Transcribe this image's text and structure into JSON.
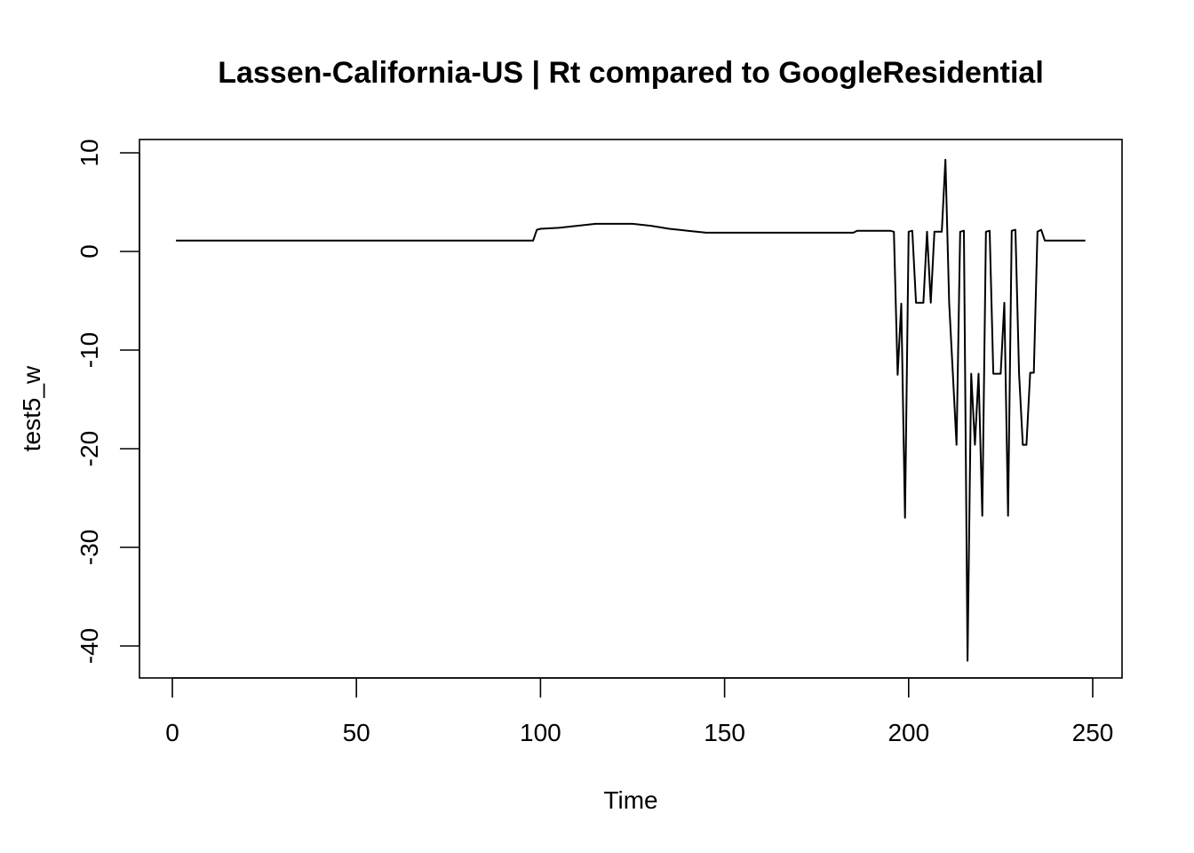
{
  "chart_data": {
    "type": "line",
    "title": "Lassen-California-US | Rt compared to GoogleResidential",
    "xlabel": "Time",
    "ylabel": "test5_w",
    "xlim": [
      1,
      248
    ],
    "ylim": [
      -41.5,
      9.5
    ],
    "x_ticks": [
      0,
      50,
      100,
      150,
      200,
      250
    ],
    "x_tick_labels": [
      "0",
      "50",
      "100",
      "150",
      "200",
      "250"
    ],
    "y_ticks": [
      -40,
      -30,
      -20,
      -10,
      0,
      10
    ],
    "y_tick_labels": [
      "-40",
      "-30",
      "-20",
      "-10",
      "0",
      "10"
    ],
    "grid": false,
    "legend": "none",
    "line_color": "#000000",
    "series": [
      {
        "x": [
          1,
          98,
          99,
          100,
          105,
          110,
          115,
          120,
          125,
          130,
          135,
          140,
          145,
          150,
          160,
          170,
          180,
          185,
          186,
          190,
          195,
          196,
          197,
          198,
          199,
          200,
          201,
          202,
          203,
          204,
          205,
          206,
          207,
          208,
          209,
          210,
          211,
          212,
          213,
          214,
          215,
          216,
          217,
          218,
          219,
          220,
          221,
          222,
          223,
          224,
          225,
          226,
          227,
          228,
          229,
          230,
          231,
          232,
          233,
          234,
          235,
          236,
          237,
          240,
          245,
          248
        ],
        "y": [
          1.1,
          1.1,
          2.2,
          2.3,
          2.4,
          2.6,
          2.8,
          2.8,
          2.8,
          2.6,
          2.3,
          2.1,
          1.9,
          1.9,
          1.9,
          1.9,
          1.9,
          1.9,
          2.1,
          2.1,
          2.1,
          2.0,
          -12.5,
          -5.3,
          -27.0,
          2.0,
          2.1,
          -5.2,
          -5.2,
          -5.2,
          2.0,
          -5.2,
          2.0,
          2.0,
          2.0,
          9.3,
          -5.2,
          -12.3,
          -19.6,
          2.0,
          2.1,
          -41.5,
          -12.4,
          -19.6,
          -12.4,
          -26.8,
          2.0,
          2.1,
          -12.4,
          -12.4,
          -12.4,
          -5.2,
          -26.8,
          2.1,
          2.2,
          -12.4,
          -19.6,
          -19.6,
          -12.3,
          -12.3,
          2.0,
          2.2,
          1.1,
          1.1,
          1.1,
          1.1
        ]
      }
    ]
  }
}
